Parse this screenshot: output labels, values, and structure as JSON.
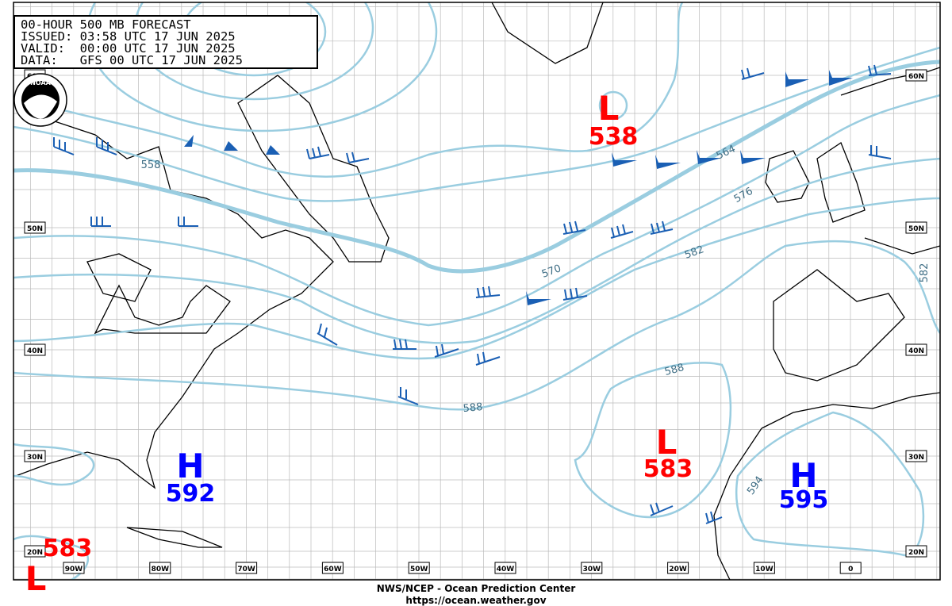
{
  "header": {
    "title": "00-HOUR 500 MB FORECAST",
    "issued": "ISSUED: 03:58 UTC 17 JUN 2025",
    "valid": "VALID:  00:00 UTC 17 JUN 2025",
    "data": "DATA:   GFS 00 UTC 17 JUN 2025"
  },
  "logo": "NOAA",
  "latitude_labels": [
    "60N",
    "50N",
    "40N",
    "30N",
    "20N"
  ],
  "longitude_labels": [
    "90W",
    "80W",
    "70W",
    "60W",
    "50W",
    "40W",
    "30W",
    "20W",
    "10W",
    "0"
  ],
  "centers": [
    {
      "label": "L",
      "value": "538"
    },
    {
      "label": "H",
      "value": "592"
    },
    {
      "label": "L",
      "value": "583"
    },
    {
      "label": "H",
      "value": "595"
    },
    {
      "label": "L",
      "value": "583"
    }
  ],
  "contour_labels": [
    "558",
    "564",
    "570",
    "576",
    "582",
    "588",
    "588",
    "594",
    "582"
  ],
  "footer": {
    "agency": "NWS/NCEP - Ocean Prediction Center",
    "url": "https://ocean.weather.gov"
  }
}
